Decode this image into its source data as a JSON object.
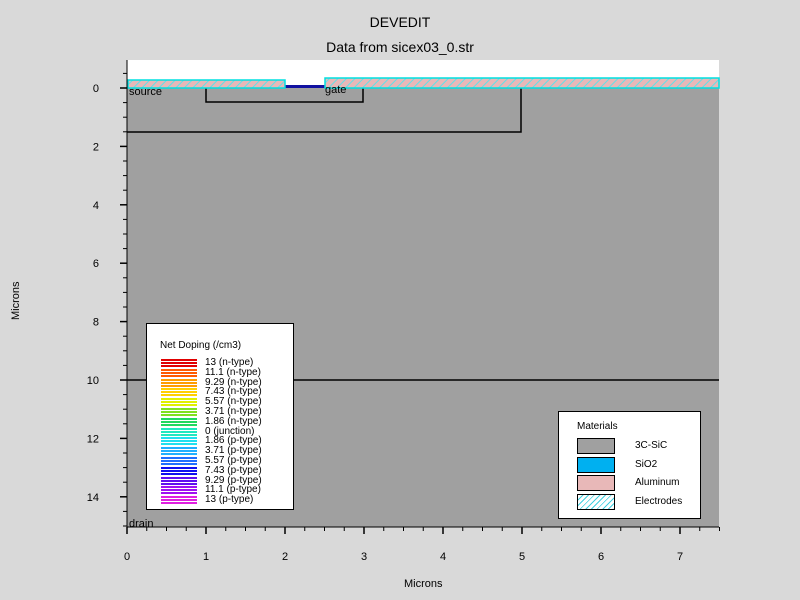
{
  "title": "DEVEDIT",
  "subtitle": "Data from sicex03_0.str",
  "axes": {
    "xlabel": "Microns",
    "ylabel": "Microns",
    "xticks": [
      "0",
      "1",
      "2",
      "3",
      "4",
      "5",
      "6",
      "7"
    ],
    "yticks": [
      "0",
      "2",
      "4",
      "6",
      "8",
      "10",
      "12",
      "14"
    ],
    "xlim": [
      0,
      7.5
    ],
    "ylim": [
      15,
      -1
    ]
  },
  "electrodes": {
    "source": "source",
    "gate": "gate",
    "drain": "drain"
  },
  "doping_legend": {
    "title": "Net Doping (/cm3)",
    "entries": [
      {
        "label": "13 (n-type)",
        "color": "#e00000"
      },
      {
        "label": "11.1 (n-type)",
        "color": "#ff5a00"
      },
      {
        "label": "9.29 (n-type)",
        "color": "#ff9c00"
      },
      {
        "label": "7.43 (n-type)",
        "color": "#ffd000"
      },
      {
        "label": "5.57 (n-type)",
        "color": "#e0f000"
      },
      {
        "label": "3.71 (n-type)",
        "color": "#80e020"
      },
      {
        "label": "1.86 (n-type)",
        "color": "#20d860"
      },
      {
        "label": "0 (junction)",
        "color": "#20e8c0"
      },
      {
        "label": "1.86 (p-type)",
        "color": "#20e0f0"
      },
      {
        "label": "3.71 (p-type)",
        "color": "#20b0ff"
      },
      {
        "label": "5.57 (p-type)",
        "color": "#2070ff"
      },
      {
        "label": "7.43 (p-type)",
        "color": "#1010f0"
      },
      {
        "label": "9.29 (p-type)",
        "color": "#6010f0"
      },
      {
        "label": "11.1 (p-type)",
        "color": "#a010f0"
      },
      {
        "label": "13 (p-type)",
        "color": "#e020e0"
      }
    ]
  },
  "materials_legend": {
    "title": "Materials",
    "entries": [
      {
        "label": "3C-SiC",
        "color": "#a0a0a0",
        "pattern": "solid"
      },
      {
        "label": "SiO2",
        "color": "#00b0f0",
        "pattern": "solid"
      },
      {
        "label": "Aluminum",
        "color": "#e8b8b8",
        "pattern": "solid"
      },
      {
        "label": "Electrodes",
        "color": "#40d0e0",
        "pattern": "hatch"
      }
    ]
  },
  "colors": {
    "background": "#d9d9d9",
    "substrate": "#a0a0a0",
    "electrode_fill": "#e8b8b8",
    "electrode_edge": "#00e0e0"
  }
}
